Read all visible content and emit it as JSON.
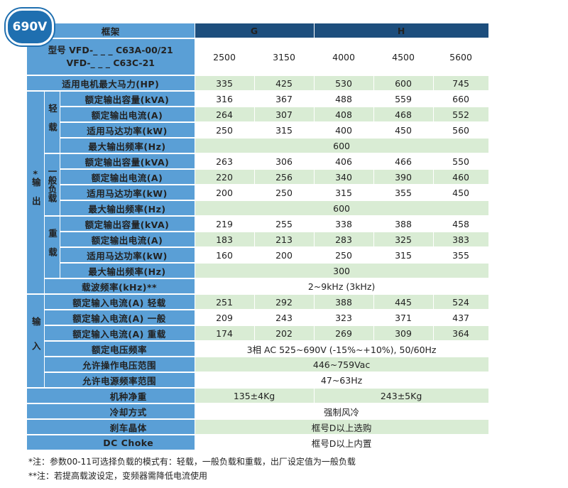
{
  "badge": "690V",
  "header": {
    "frame_label": "框架",
    "frame_g": "G",
    "frame_h": "H",
    "model_line1": "型号 VFD-_ _ _ C63A-00/21",
    "model_line2": "VFD-_ _ _ C63C-21",
    "models": [
      "2500",
      "3150",
      "4000",
      "4500",
      "5600"
    ]
  },
  "motor_hp": {
    "label": "适用电机最大马力(HP)",
    "values": [
      "335",
      "425",
      "530",
      "600",
      "745"
    ]
  },
  "groups": {
    "output": "输出",
    "output_star": "*",
    "light": "轻载",
    "normal": "一般负载",
    "heavy": "重载",
    "input": "输入"
  },
  "light_duty": [
    {
      "label": "额定输出容量(kVA)",
      "values": [
        "316",
        "367",
        "488",
        "559",
        "660"
      ]
    },
    {
      "label": "额定输出电流(A)",
      "values": [
        "264",
        "307",
        "408",
        "468",
        "552"
      ]
    },
    {
      "label": "适用马达功率(kW)",
      "values": [
        "250",
        "315",
        "400",
        "450",
        "560"
      ]
    },
    {
      "label": "最大输出频率(Hz)",
      "value": "600"
    }
  ],
  "normal_duty": [
    {
      "label": "额定输出容量(kVA)",
      "values": [
        "263",
        "306",
        "406",
        "466",
        "550"
      ]
    },
    {
      "label": "额定输出电流(A)",
      "values": [
        "220",
        "256",
        "340",
        "390",
        "460"
      ]
    },
    {
      "label": "适用马达功率(kW)",
      "values": [
        "200",
        "250",
        "315",
        "355",
        "450"
      ]
    },
    {
      "label": "最大输出频率(Hz)",
      "value": "600"
    }
  ],
  "heavy_duty": [
    {
      "label": "额定输出容量(kVA)",
      "values": [
        "219",
        "255",
        "338",
        "388",
        "458"
      ]
    },
    {
      "label": "额定输出电流(A)",
      "values": [
        "183",
        "213",
        "283",
        "325",
        "383"
      ]
    },
    {
      "label": "适用马达功率(kW)",
      "values": [
        "160",
        "200",
        "250",
        "315",
        "355"
      ]
    },
    {
      "label": "最大输出频率(Hz)",
      "value": "300"
    }
  ],
  "carrier": {
    "label": "载波频率(kHz)**",
    "value": "2~9kHz (3kHz)"
  },
  "input_rows": [
    {
      "label": "额定输入电流(A) 轻载",
      "values": [
        "251",
        "292",
        "388",
        "445",
        "524"
      ]
    },
    {
      "label": "额定输入电流(A) 一般",
      "values": [
        "209",
        "243",
        "323",
        "371",
        "437"
      ]
    },
    {
      "label": "额定输入电流(A) 重载",
      "values": [
        "174",
        "202",
        "269",
        "309",
        "364"
      ]
    },
    {
      "label": "额定电压频率",
      "value": "3相 AC 525~690V (-15%~+10%), 50/60Hz"
    },
    {
      "label": "允许操作电压范围",
      "value": "446~759Vac"
    },
    {
      "label": "允许电源频率范围",
      "value": "47~63Hz"
    }
  ],
  "weight": {
    "label": "机种净重",
    "g": "135±4Kg",
    "h": "243±5Kg"
  },
  "cooling": {
    "label": "冷却方式",
    "value": "强制风冷"
  },
  "brake": {
    "label": "刹车晶体",
    "value": "框号D以上选购"
  },
  "dc_choke": {
    "label": "DC Choke",
    "value": "框号D以上内置"
  },
  "notes": {
    "note1": "*注：参数00-11可选择负载的模式有：轻载，一般负载和重载，出厂设定值为一般负载",
    "note2": "**注：若提高载波设定，变频器需降低电流使用"
  }
}
